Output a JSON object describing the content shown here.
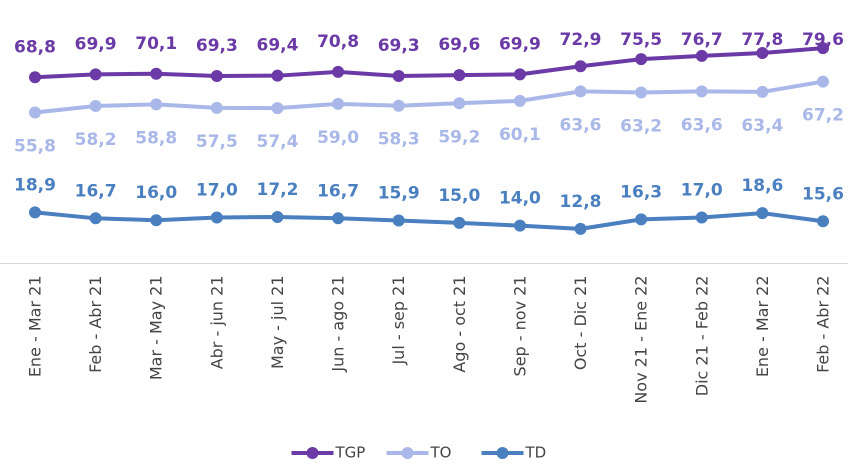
{
  "chart_data": {
    "type": "line",
    "categories": [
      "Ene - Mar 21",
      "Feb - Abr 21",
      "Mar - May 21",
      "Abr - jun 21",
      "May - jul 21",
      "Jun - ago 21",
      "Jul - sep 21",
      "Ago - oct 21",
      "Sep - nov 21",
      "Oct - Dic 21",
      "Nov 21 - Ene 22",
      "Dic 21 - Feb 22",
      "Ene - Mar 22",
      "Feb - Abr 22"
    ],
    "series": [
      {
        "name": "TGP",
        "color": "#6b3aa6",
        "values": [
          68.8,
          69.9,
          70.1,
          69.3,
          69.4,
          70.8,
          69.3,
          69.6,
          69.9,
          72.9,
          75.5,
          76.7,
          77.8,
          79.6
        ],
        "value_labels": [
          "68,8",
          "69,9",
          "70,1",
          "69,3",
          "69,4",
          "70,8",
          "69,3",
          "69,6",
          "69,9",
          "72,9",
          "75,5",
          "76,7",
          "77,8",
          "79,6"
        ]
      },
      {
        "name": "TO",
        "color": "#a9b8e8",
        "values": [
          55.8,
          58.2,
          58.8,
          57.5,
          57.4,
          59.0,
          58.3,
          59.2,
          60.1,
          63.6,
          63.2,
          63.6,
          63.4,
          67.2
        ],
        "value_labels": [
          "55,8",
          "58,2",
          "58,8",
          "57,5",
          "57,4",
          "59,0",
          "58,3",
          "59,2",
          "60,1",
          "63,6",
          "63,2",
          "63,6",
          "63,4",
          "67,2"
        ]
      },
      {
        "name": "TD",
        "color": "#4a7fc0",
        "values": [
          18.9,
          16.7,
          16.0,
          17.0,
          17.2,
          16.7,
          15.9,
          15.0,
          14.0,
          12.8,
          16.3,
          17.0,
          18.6,
          15.6
        ],
        "value_labels": [
          "18,9",
          "16,7",
          "16,0",
          "17,0",
          "17,2",
          "16,7",
          "15,9",
          "15,0",
          "14,0",
          "12,8",
          "16,3",
          "17,0",
          "18,6",
          "15,6"
        ]
      }
    ],
    "ylim": [
      0,
      80
    ]
  }
}
